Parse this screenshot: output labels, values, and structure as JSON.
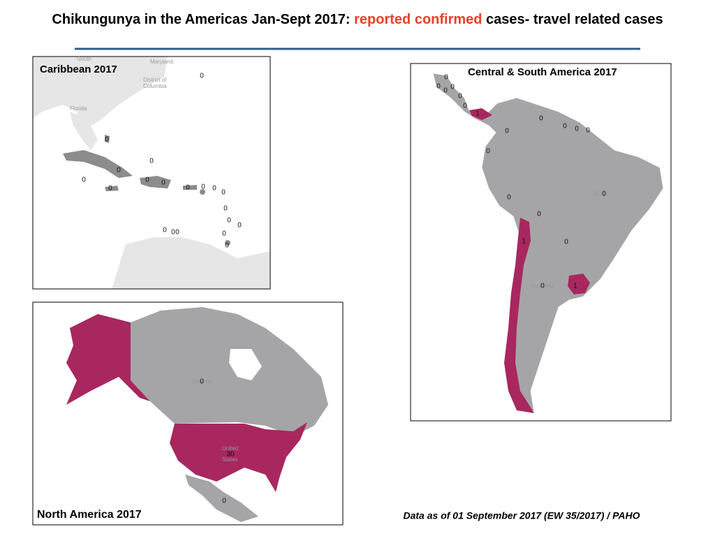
{
  "header": {
    "title_start": "Chikungunya in the Americas Jan-Sept 2017: ",
    "title_highlight": "reported confirmed",
    "title_end": " cases- travel related cases"
  },
  "caribbean": {
    "title": "Caribbean 2017",
    "place_names": [
      "South",
      "Maryland",
      "District of",
      "Columbia",
      "Florida"
    ],
    "counts": [
      0,
      0,
      0,
      0,
      0,
      0,
      0,
      0,
      0,
      0,
      0,
      0,
      0,
      0,
      0,
      0,
      0,
      0,
      0,
      0
    ]
  },
  "central_south": {
    "title": "Central & South America  2017",
    "place_names": [
      "Brazil",
      "Argentina"
    ],
    "counts": [
      0,
      0,
      0,
      0,
      0,
      0,
      1,
      0,
      0,
      0,
      0,
      0,
      0,
      0,
      0,
      0,
      1,
      0,
      0,
      1
    ]
  },
  "north": {
    "title": "North America  2017",
    "place_names": [
      "Canada",
      "United",
      "States"
    ],
    "counts": [
      0,
      30,
      0
    ]
  },
  "footnote": "Data as of 01 September 2017 (EW 35/2017) / PAHO"
}
